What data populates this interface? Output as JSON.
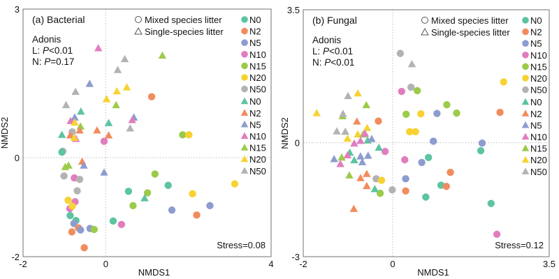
{
  "chart_data": [
    {
      "type": "scatter",
      "title": "(a) Bacterial",
      "xlabel": "NMDS1",
      "ylabel": "NMDS2",
      "xlim": [
        -2,
        4
      ],
      "ylim": [
        -2,
        3
      ],
      "xticks": [
        "-2",
        "0",
        "4"
      ],
      "yticks": [
        "3",
        "0",
        "-2"
      ],
      "xtick_values": [
        -2,
        0,
        4
      ],
      "ytick_values": [
        3,
        0,
        -2
      ],
      "stats": {
        "heading": "Adonis",
        "L_prefix": "L: ",
        "L_p": "P",
        "L_value": "<0.01",
        "N_prefix": "N: ",
        "N_p": "P",
        "N_value": "=0.17"
      },
      "stress": "Stress=0.08",
      "points": [
        [
          1.11,
          1.23,
          "N2",
          "o"
        ],
        [
          1.86,
          0.46,
          "N15",
          "o"
        ],
        [
          2.01,
          0.46,
          "N20",
          "o"
        ],
        [
          -0.04,
          0.33,
          "N10",
          "o"
        ],
        [
          -0.81,
          0.52,
          "N50",
          "o"
        ],
        [
          -1.04,
          0.13,
          "N50",
          "o"
        ],
        [
          -1.06,
          0.11,
          "N0",
          "o"
        ],
        [
          1.19,
          -0.33,
          "N15",
          "o"
        ],
        [
          1.51,
          -0.56,
          "N0",
          "o"
        ],
        [
          3.12,
          -0.53,
          "N20",
          "o"
        ],
        [
          0.55,
          -0.68,
          "N0",
          "o"
        ],
        [
          1.01,
          -0.71,
          "N15",
          "o"
        ],
        [
          2.1,
          -0.73,
          "N20",
          "o"
        ],
        [
          0.66,
          -0.97,
          "N15",
          "o"
        ],
        [
          2.52,
          -0.97,
          "N5",
          "o"
        ],
        [
          1.6,
          -1.06,
          "N5",
          "o"
        ],
        [
          2.2,
          -1.16,
          "N2",
          "o"
        ],
        [
          0.18,
          -1.28,
          "N0",
          "o"
        ],
        [
          0.38,
          -1.35,
          "N10",
          "o"
        ],
        [
          -1.01,
          -0.37,
          "N50",
          "o"
        ],
        [
          -0.76,
          -0.41,
          "N10",
          "o"
        ],
        [
          -0.63,
          -0.44,
          "N50",
          "o"
        ],
        [
          -0.69,
          -0.67,
          "N50",
          "o"
        ],
        [
          -0.91,
          -0.86,
          "N20",
          "o"
        ],
        [
          -0.74,
          -0.89,
          "N10",
          "o"
        ],
        [
          -0.87,
          -1.03,
          "N10",
          "o"
        ],
        [
          -0.81,
          -0.98,
          "N20",
          "o"
        ],
        [
          -0.86,
          -1.17,
          "N0",
          "o"
        ],
        [
          -0.72,
          -1.27,
          "N0",
          "o"
        ],
        [
          -0.77,
          -1.33,
          "N5",
          "o"
        ],
        [
          -0.66,
          -1.42,
          "N2",
          "o"
        ],
        [
          -0.61,
          -1.46,
          "N5",
          "o"
        ],
        [
          -0.38,
          -1.43,
          "N5",
          "o"
        ],
        [
          -0.28,
          -1.45,
          "N15",
          "o"
        ],
        [
          -0.82,
          -1.5,
          "N2",
          "o"
        ],
        [
          -0.52,
          -1.82,
          "N2",
          "o"
        ],
        [
          -0.18,
          2.21,
          "N10",
          "t"
        ],
        [
          1.37,
          2.06,
          "N15",
          "t"
        ],
        [
          0.46,
          1.99,
          "N50",
          "t"
        ],
        [
          0.29,
          1.77,
          "N50",
          "t"
        ],
        [
          -0.39,
          1.49,
          "N5",
          "t"
        ],
        [
          0.51,
          1.42,
          "N20",
          "t"
        ],
        [
          0.27,
          1.34,
          "N20",
          "t"
        ],
        [
          -0.73,
          1.33,
          "N50",
          "t"
        ],
        [
          0.02,
          1.18,
          "N20",
          "t"
        ],
        [
          -0.96,
          1.06,
          "N50",
          "t"
        ],
        [
          0.25,
          1.06,
          "N15",
          "t"
        ],
        [
          -0.6,
          0.93,
          "N0",
          "t"
        ],
        [
          0.68,
          0.81,
          "N5",
          "t"
        ],
        [
          0.64,
          0.76,
          "N10",
          "t"
        ],
        [
          -0.75,
          0.81,
          "N5",
          "t"
        ],
        [
          -0.85,
          0.74,
          "N10",
          "t"
        ],
        [
          -0.75,
          0.71,
          "N20",
          "t"
        ],
        [
          0.07,
          0.7,
          "N0",
          "t"
        ],
        [
          -0.61,
          0.63,
          "N15",
          "t"
        ],
        [
          0.59,
          0.59,
          "N50",
          "t"
        ],
        [
          -0.63,
          0.55,
          "N2",
          "t"
        ],
        [
          -0.21,
          0.55,
          "N2",
          "t"
        ],
        [
          -1.06,
          0.46,
          "N0",
          "t"
        ],
        [
          -0.86,
          0.45,
          "N2",
          "t"
        ],
        [
          0.07,
          0.45,
          "N2",
          "t"
        ],
        [
          -0.72,
          0.38,
          "N10",
          "t"
        ],
        [
          -0.76,
          0.4,
          "N20",
          "t"
        ],
        [
          -0.57,
          -0.08,
          "N2",
          "t"
        ],
        [
          -0.53,
          -0.16,
          "N5",
          "t"
        ],
        [
          -0.98,
          -0.19,
          "N15",
          "t"
        ],
        [
          -0.9,
          -0.16,
          "N15",
          "t"
        ],
        [
          -0.04,
          -0.3,
          "N5",
          "t"
        ],
        [
          0.94,
          -0.82,
          "N0",
          "t"
        ]
      ]
    },
    {
      "type": "scatter",
      "title": "(b) Fungal",
      "xlabel": "NMDS1",
      "ylabel": "NMDS2",
      "xlim": [
        -2,
        3.5
      ],
      "ylim": [
        -3,
        3.5
      ],
      "xticks": [
        "-2",
        "0",
        "3.5"
      ],
      "yticks": [
        "3.5",
        "0",
        "-3"
      ],
      "xtick_values": [
        -2,
        0,
        3.5
      ],
      "ytick_values": [
        3.5,
        0,
        -3
      ],
      "stats": {
        "heading": "Adonis",
        "L_prefix": "L: ",
        "L_p": "P",
        "L_value": "<0.01",
        "N_prefix": "N: ",
        "N_p": "P",
        "N_value": "<0.01"
      },
      "stress": "Stress=0.12",
      "points": [
        [
          0.17,
          2.35,
          "N50",
          "o"
        ],
        [
          0.41,
          1.46,
          "N50",
          "o"
        ],
        [
          0.55,
          1.37,
          "N15",
          "o"
        ],
        [
          0.2,
          1.35,
          "N10",
          "o"
        ],
        [
          2.48,
          1.6,
          "N20",
          "o"
        ],
        [
          1.21,
          1.0,
          "N15",
          "o"
        ],
        [
          0.3,
          0.75,
          "N15",
          "o"
        ],
        [
          0.63,
          0.76,
          "N20",
          "o"
        ],
        [
          0.99,
          0.77,
          "N5",
          "o"
        ],
        [
          1.43,
          0.78,
          "N15",
          "o"
        ],
        [
          2.4,
          0.8,
          "N2",
          "o"
        ],
        [
          -0.32,
          0.57,
          "N2",
          "o"
        ],
        [
          0.38,
          0.29,
          "N20",
          "o"
        ],
        [
          0.51,
          0.29,
          "N20",
          "o"
        ],
        [
          0.91,
          0.04,
          "N5",
          "o"
        ],
        [
          2.0,
          -0.01,
          "N5",
          "o"
        ],
        [
          1.97,
          -0.21,
          "N0",
          "o"
        ],
        [
          -0.17,
          -0.23,
          "N10",
          "o"
        ],
        [
          0.27,
          -0.45,
          "N10",
          "o"
        ],
        [
          0.8,
          -0.39,
          "N0",
          "o"
        ],
        [
          0.65,
          -0.52,
          "N5",
          "o"
        ],
        [
          1.29,
          -0.78,
          "N2",
          "o"
        ],
        [
          0.29,
          -0.95,
          "N5",
          "o"
        ],
        [
          -0.37,
          -0.95,
          "N50",
          "o"
        ],
        [
          -0.25,
          -0.99,
          "N20",
          "o"
        ],
        [
          1.08,
          -1.12,
          "N0",
          "o"
        ],
        [
          1.2,
          -1.15,
          "N2",
          "o"
        ],
        [
          -0.01,
          -1.24,
          "N50",
          "o"
        ],
        [
          0.29,
          -1.27,
          "N2",
          "o"
        ],
        [
          -0.28,
          -1.33,
          "N15",
          "o"
        ],
        [
          0.74,
          -1.43,
          "N0",
          "o"
        ],
        [
          2.2,
          -1.6,
          "N0",
          "o"
        ],
        [
          2.33,
          -2.41,
          "N10",
          "o"
        ],
        [
          0.43,
          2.07,
          "N50",
          "t"
        ],
        [
          -0.78,
          1.3,
          "N20",
          "t"
        ],
        [
          -1.0,
          1.23,
          "N50",
          "t"
        ],
        [
          -0.59,
          0.99,
          "N15",
          "t"
        ],
        [
          -1.7,
          0.78,
          "N20",
          "t"
        ],
        [
          -1.12,
          0.7,
          "N15",
          "t"
        ],
        [
          -1.11,
          0.76,
          "N50",
          "t"
        ],
        [
          -0.8,
          0.56,
          "N2",
          "t"
        ],
        [
          -0.57,
          0.39,
          "N20",
          "t"
        ],
        [
          -1.25,
          0.3,
          "N50",
          "t"
        ],
        [
          -1.06,
          0.29,
          "N50",
          "t"
        ],
        [
          -0.78,
          0.22,
          "N20",
          "t"
        ],
        [
          -0.66,
          0.22,
          "N15",
          "t"
        ],
        [
          -0.62,
          0.24,
          "N10",
          "t"
        ],
        [
          -1.01,
          0.11,
          "N20",
          "t"
        ],
        [
          -0.86,
          -0.02,
          "N10",
          "t"
        ],
        [
          -0.72,
          0.05,
          "N10",
          "t"
        ],
        [
          -0.56,
          0.06,
          "N0",
          "t"
        ],
        [
          -0.47,
          0.1,
          "N5",
          "t"
        ],
        [
          -0.31,
          -0.13,
          "N0",
          "t"
        ],
        [
          -0.96,
          -0.26,
          "N0",
          "t"
        ],
        [
          -1.31,
          -0.43,
          "N5",
          "t"
        ],
        [
          -1.14,
          -0.39,
          "N15",
          "t"
        ],
        [
          -1.01,
          -0.33,
          "N10",
          "t"
        ],
        [
          -1.17,
          -0.56,
          "N10",
          "t"
        ],
        [
          -0.86,
          -0.46,
          "N0",
          "t"
        ],
        [
          -0.72,
          -0.36,
          "N5",
          "t"
        ],
        [
          -0.68,
          -0.51,
          "N5",
          "t"
        ],
        [
          -0.55,
          -0.34,
          "N5",
          "t"
        ],
        [
          -0.97,
          -0.86,
          "N15",
          "t"
        ],
        [
          -0.72,
          -0.93,
          "N2",
          "t"
        ],
        [
          -0.58,
          -0.82,
          "N2",
          "t"
        ],
        [
          -0.58,
          -1.14,
          "N2",
          "t"
        ],
        [
          -0.4,
          -1.22,
          "N0",
          "t"
        ],
        [
          -0.87,
          -1.74,
          "N2",
          "t"
        ]
      ]
    }
  ],
  "legend": {
    "mixed_label": "Mixed species litter",
    "single_label": "Single-species litter",
    "groups": [
      "N0",
      "N2",
      "N5",
      "N10",
      "N15",
      "N20",
      "N50"
    ],
    "colors": {
      "N0": "#5cc4a0",
      "N2": "#f28c5e",
      "N5": "#8d9ccf",
      "N10": "#e17dbf",
      "N15": "#9ccb4a",
      "N20": "#f7d232",
      "N50": "#b3b3b3"
    }
  }
}
